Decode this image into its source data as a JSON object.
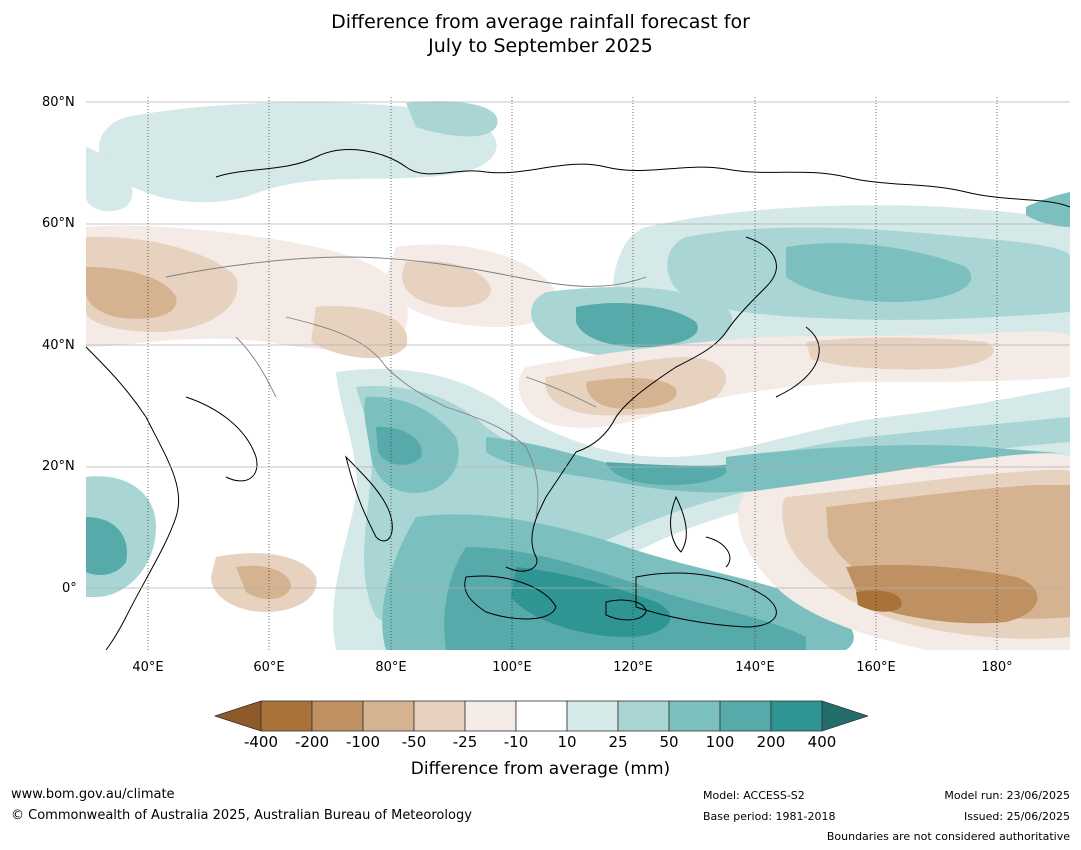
{
  "title_line1": "Difference from average rainfall forecast for",
  "title_line2": "July to September 2025",
  "lat_labels": [
    "80°N",
    "60°N",
    "40°N",
    "20°N",
    "0°"
  ],
  "lon_labels": [
    "40°E",
    "60°E",
    "80°E",
    "100°E",
    "120°E",
    "140°E",
    "160°E",
    "180°"
  ],
  "colorbar": {
    "label": "Difference from average (mm)",
    "ticks": [
      "-400",
      "-200",
      "-100",
      "-50",
      "-25",
      "-10",
      "10",
      "25",
      "50",
      "100",
      "200",
      "400"
    ],
    "colors": [
      "#8f5a2a",
      "#a97238",
      "#bf9062",
      "#d5b290",
      "#e6d2bf",
      "#f4ebe6",
      "#ffffff",
      "#d4e9e8",
      "#a9d6d5",
      "#7bc0bf",
      "#56aaa9",
      "#2f9593",
      "#226e6c"
    ]
  },
  "footer": {
    "website": "www.bom.gov.au/climate",
    "copyright": "© Commonwealth of Australia 2025, Australian Bureau of Meteorology",
    "model": "Model: ACCESS-S2",
    "base_period": "Base period: 1981-2018",
    "model_run": "Model run: 23/06/2025",
    "issued": "Issued: 25/06/2025",
    "disclaimer": "Boundaries are not considered authoritative"
  }
}
